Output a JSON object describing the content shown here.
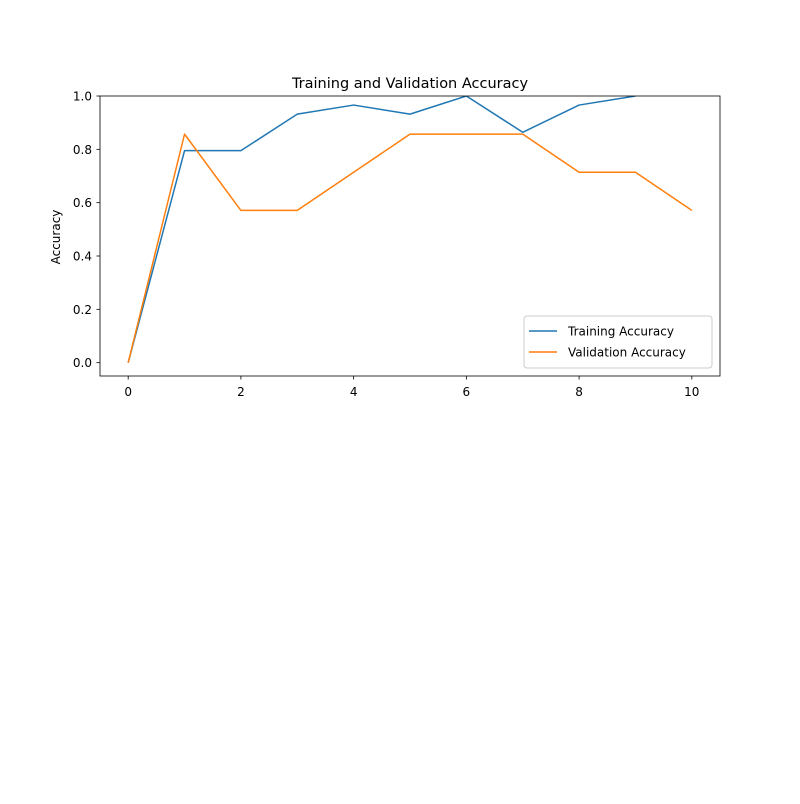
{
  "chart_data": {
    "type": "line",
    "title": "Training and Validation Accuracy",
    "xlabel": "",
    "ylabel": "Accuracy",
    "xlim": [
      -0.5,
      10.5
    ],
    "ylim": [
      -0.05,
      1.0
    ],
    "x_ticks": [
      0,
      2,
      4,
      6,
      8,
      10
    ],
    "x_tick_labels": [
      "0",
      "2",
      "4",
      "6",
      "8",
      "10"
    ],
    "y_ticks": [
      0.0,
      0.2,
      0.4,
      0.6,
      0.8,
      1.0
    ],
    "y_tick_labels": [
      "0.0",
      "0.2",
      "0.4",
      "0.6",
      "0.8",
      "1.0"
    ],
    "grid": false,
    "legend_position": "lower-right",
    "series": [
      {
        "name": "Training Accuracy",
        "color": "#1f77b4",
        "x": [
          0,
          1,
          2,
          3,
          4,
          5,
          6,
          7,
          8,
          9
        ],
        "y": [
          0.0,
          0.795,
          0.795,
          0.932,
          0.966,
          0.932,
          1.0,
          0.864,
          0.966,
          1.0
        ]
      },
      {
        "name": "Validation Accuracy",
        "color": "#ff7f0e",
        "x": [
          0,
          1,
          2,
          3,
          4,
          5,
          6,
          7,
          8,
          9,
          10
        ],
        "y": [
          0.0,
          0.857,
          0.571,
          0.571,
          0.714,
          0.857,
          0.857,
          0.857,
          0.714,
          0.714,
          0.571
        ]
      }
    ]
  }
}
